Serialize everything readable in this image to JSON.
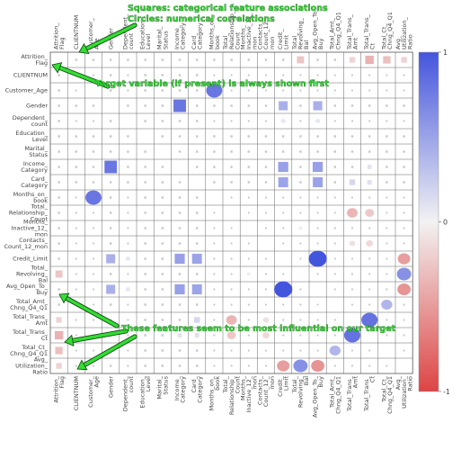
{
  "chart_data": {
    "type": "heatmap",
    "variables": [
      "Attrition_Flag",
      "CLIENTNUM",
      "Customer_Age",
      "Gender",
      "Dependent_count",
      "Education_Level",
      "Marital_Status",
      "Income_Category",
      "Card_Category",
      "Months_on_book",
      "Total_Relationship_Count",
      "Months_Inactive_12_mon",
      "Contacts_Count_12_mon",
      "Credit_Limit",
      "Total_Revolving_Bal",
      "Avg_Open_To_Buy",
      "Total_Amt_Chng_Q4_Q1",
      "Total_Trans_Amt",
      "Total_Trans_Ct",
      "Total_Ct_Chng_Q4_Q1",
      "Avg_Utilization_Ratio"
    ],
    "row_labels": [
      [
        "Attrition_",
        "Flag"
      ],
      [
        "CLIENTNUM"
      ],
      [
        "Customer_Age"
      ],
      [
        "Gender"
      ],
      [
        "Dependent_",
        "count"
      ],
      [
        "Education_",
        "Level"
      ],
      [
        "Marital_",
        "Status"
      ],
      [
        "Income_",
        "Category"
      ],
      [
        "Card_",
        "Category"
      ],
      [
        "Months_on_",
        "book"
      ],
      [
        "Total_",
        "Relationship_",
        "Count"
      ],
      [
        "Months_",
        "Inactive_12_",
        "mon"
      ],
      [
        "Contacts_",
        "Count_12_mon"
      ],
      [
        "Credit_Limit"
      ],
      [
        "Total_",
        "Revolving_",
        "Bal"
      ],
      [
        "Avg_Open_To_",
        "Buy"
      ],
      [
        "Total_Amt_",
        "Chng_Q4_Q1"
      ],
      [
        "Total_Trans_",
        "Amt"
      ],
      [
        "Total_Trans_",
        "Ct"
      ],
      [
        "Total_Ct_",
        "Chng_Q4_Q1"
      ],
      [
        "Avg_",
        "Utilization_",
        "Ratio"
      ]
    ],
    "col_labels": [
      [
        "Attrition_",
        "Flag"
      ],
      [
        "CLIENTNUM"
      ],
      [
        "Customer_",
        "Age"
      ],
      [
        "Gender"
      ],
      [
        "Dependent_",
        "count"
      ],
      [
        "Education_",
        "Level"
      ],
      [
        "Marital_",
        "Status"
      ],
      [
        "Income_",
        "Category"
      ],
      [
        "Card_",
        "Category"
      ],
      [
        "Months_on_",
        "book"
      ],
      [
        "Total_",
        "Relationship_",
        "Count"
      ],
      [
        "Months_",
        "Inactive_12_",
        "mon"
      ],
      [
        "Contacts_",
        "Count_12_",
        "mon"
      ],
      [
        "Credit_",
        "Limit"
      ],
      [
        "Total_",
        "Revolving_",
        "Bal"
      ],
      [
        "Avg_Open_To_",
        "Buy"
      ],
      [
        "Total_Amt_",
        "Chng_Q4_Q1"
      ],
      [
        "Total_Trans_",
        "Amt"
      ],
      [
        "Total_Trans_",
        "Ct"
      ],
      [
        "Total_Ct_",
        "Chng_Q4_Q1"
      ],
      [
        "Avg_",
        "Utilization_",
        "Ratio"
      ]
    ],
    "categorical_variables": [
      "Attrition_Flag",
      "Gender",
      "Education_Level",
      "Marital_Status",
      "Income_Category",
      "Card_Category"
    ],
    "marker_legend": {
      "categorical": "square",
      "numerical": "circle"
    },
    "cells": [
      [
        0,
        14,
        -0.26
      ],
      [
        0,
        17,
        -0.17
      ],
      [
        0,
        18,
        -0.37
      ],
      [
        0,
        19,
        -0.29
      ],
      [
        0,
        20,
        -0.18
      ],
      [
        2,
        9,
        0.79
      ],
      [
        3,
        7,
        0.79
      ],
      [
        3,
        13,
        0.42
      ],
      [
        3,
        15,
        0.42
      ],
      [
        4,
        13,
        0.07
      ],
      [
        4,
        15,
        0.07
      ],
      [
        7,
        13,
        0.52
      ],
      [
        7,
        15,
        0.52
      ],
      [
        7,
        18,
        0.1
      ],
      [
        8,
        13,
        0.5
      ],
      [
        8,
        15,
        0.5
      ],
      [
        8,
        17,
        0.17
      ],
      [
        8,
        18,
        0.11
      ],
      [
        10,
        17,
        -0.35
      ],
      [
        10,
        18,
        -0.24
      ],
      [
        11,
        14,
        -0.04
      ],
      [
        12,
        17,
        -0.11
      ],
      [
        12,
        18,
        -0.15
      ],
      [
        13,
        15,
        1.0
      ],
      [
        13,
        20,
        -0.48
      ],
      [
        14,
        20,
        0.62
      ],
      [
        15,
        20,
        -0.54
      ],
      [
        16,
        19,
        0.38
      ],
      [
        17,
        18,
        0.81
      ],
      [
        18,
        20,
        0.0
      ]
    ],
    "colorbar": {
      "min": -1,
      "max": 1,
      "ticks": [
        1,
        0,
        -1
      ],
      "colors": [
        "#4455dd",
        "#f2f2f2",
        "#dd4444"
      ]
    },
    "annotations": [
      "Squares: categorical feature associations",
      "Circles: numerical correlations",
      "Target variable (if present) is always shown first",
      "These features seem to be most influential on our target"
    ]
  }
}
